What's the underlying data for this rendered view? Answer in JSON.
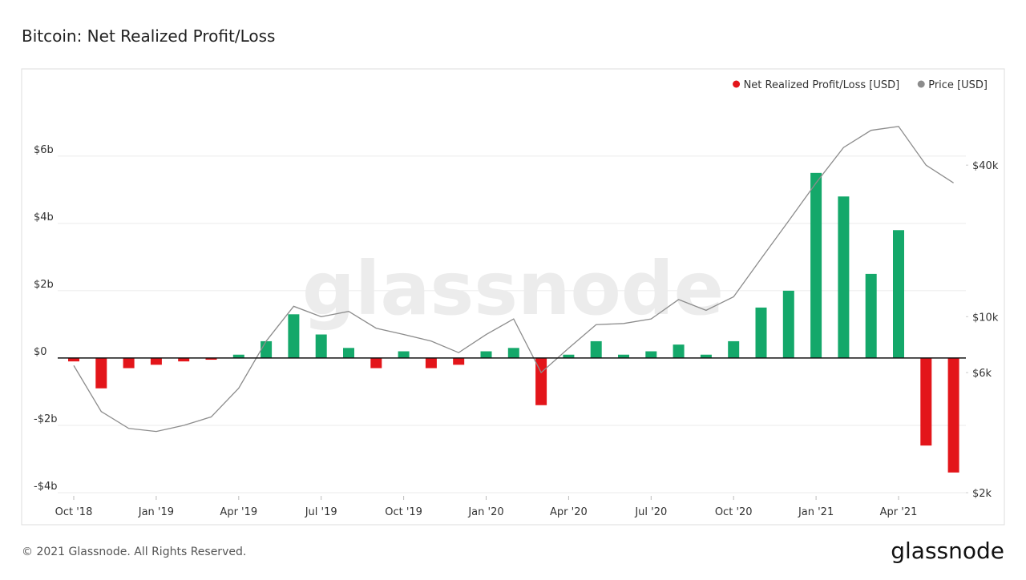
{
  "chart_data": {
    "type": "bar",
    "title": "Bitcoin: Net Realized Profit/Loss",
    "watermark": "glassnode",
    "footer": "© 2021 Glassnode. All Rights Reserved.",
    "logo": "glassnode",
    "x": [
      "2018-10",
      "2018-11",
      "2018-12",
      "2019-01",
      "2019-02",
      "2019-03",
      "2019-04",
      "2019-05",
      "2019-06",
      "2019-07",
      "2019-08",
      "2019-09",
      "2019-10",
      "2019-11",
      "2019-12",
      "2020-01",
      "2020-02",
      "2020-03",
      "2020-04",
      "2020-05",
      "2020-06",
      "2020-07",
      "2020-08",
      "2020-09",
      "2020-10",
      "2020-11",
      "2020-12",
      "2021-01",
      "2021-02",
      "2021-03",
      "2021-04",
      "2021-05",
      "2021-06"
    ],
    "series": [
      {
        "name": "Net Realized Profit/Loss [USD]",
        "type": "bar",
        "color": "#e3151a",
        "positive_color": "#14a86a",
        "values": [
          -100000000,
          -900000000,
          -300000000,
          -200000000,
          -100000000,
          -50000000,
          100000000,
          500000000,
          1300000000,
          700000000,
          300000000,
          -300000000,
          200000000,
          -300000000,
          -200000000,
          200000000,
          300000000,
          -1400000000,
          100000000,
          500000000,
          100000000,
          200000000,
          400000000,
          100000000,
          500000000,
          1500000000,
          2000000000,
          5500000000,
          4800000000,
          2500000000,
          3800000000,
          -2600000000,
          -3400000000
        ]
      },
      {
        "name": "Price [USD]",
        "type": "line",
        "axis": "y2",
        "color": "#8c8c8c",
        "values": [
          6400,
          4200,
          3600,
          3500,
          3700,
          4000,
          5200,
          8000,
          11000,
          10000,
          10500,
          9000,
          8500,
          8000,
          7200,
          8500,
          9800,
          6000,
          7500,
          9300,
          9400,
          9800,
          11700,
          10600,
          12000,
          17000,
          24000,
          34000,
          47000,
          55000,
          57000,
          40000,
          34000
        ]
      }
    ],
    "xticks": [
      {
        "value": "2018-10",
        "label": "Oct '18"
      },
      {
        "value": "2019-01",
        "label": "Jan '19"
      },
      {
        "value": "2019-04",
        "label": "Apr '19"
      },
      {
        "value": "2019-07",
        "label": "Jul '19"
      },
      {
        "value": "2019-10",
        "label": "Oct '19"
      },
      {
        "value": "2020-01",
        "label": "Jan '20"
      },
      {
        "value": "2020-04",
        "label": "Apr '20"
      },
      {
        "value": "2020-07",
        "label": "Jul '20"
      },
      {
        "value": "2020-10",
        "label": "Oct '20"
      },
      {
        "value": "2021-01",
        "label": "Jan '21"
      },
      {
        "value": "2021-04",
        "label": "Apr '21"
      }
    ],
    "ylim": [
      -4000000000,
      7900000000
    ],
    "yticks": [
      {
        "value": -4000000000,
        "label": "-$4b"
      },
      {
        "value": -2000000000,
        "label": "-$2b"
      },
      {
        "value": 0,
        "label": "$0"
      },
      {
        "value": 2000000000,
        "label": "$2b"
      },
      {
        "value": 4000000000,
        "label": "$4b"
      },
      {
        "value": 6000000000,
        "label": "$6b"
      }
    ],
    "y2lim": [
      2000,
      78000
    ],
    "y2log": true,
    "y2ticks": [
      {
        "value": 2000,
        "label": "$2k"
      },
      {
        "value": 6000,
        "label": "$6k"
      },
      {
        "value": 10000,
        "label": "$10k"
      },
      {
        "value": 40000,
        "label": "$40k"
      }
    ],
    "grid": true,
    "legend": "top-right"
  }
}
